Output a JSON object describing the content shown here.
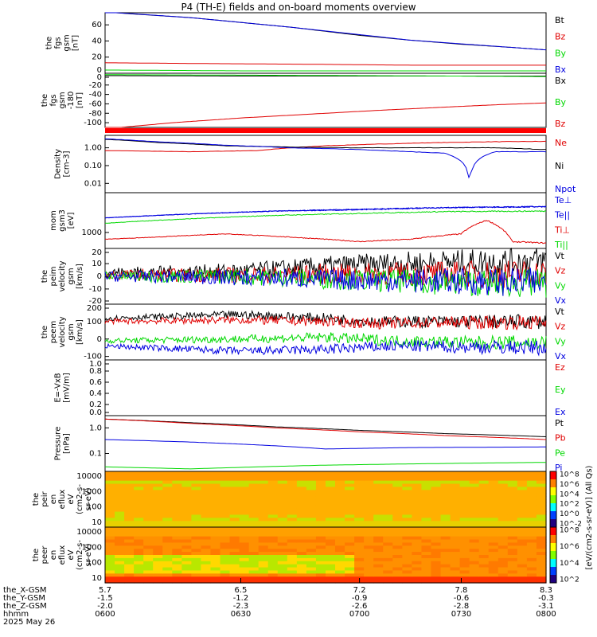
{
  "page": {
    "title": "P4 (TH-E) fields and on-board moments overview"
  },
  "colors": {
    "black": "#000000",
    "red": "#e00000",
    "green": "#00d800",
    "blue": "#0000e0"
  },
  "chart_data": [
    {
      "type": "line",
      "panel": "fgs-magnitude-upper",
      "ylabel": [
        "the",
        "fgs",
        "gsm",
        "[nT]"
      ],
      "yticks": [
        "60",
        "40",
        "20",
        "0"
      ],
      "ylim": [
        0,
        75
      ],
      "series": [
        {
          "name": "Bt",
          "color": "#000000",
          "values": [
            [
              5.7,
              76
            ],
            [
              5.9,
              73
            ],
            [
              6.2,
              69
            ],
            [
              6.5,
              63
            ],
            [
              6.8,
              57
            ],
            [
              7.0,
              52
            ],
            [
              7.2,
              47
            ],
            [
              7.5,
              41
            ],
            [
              7.8,
              36
            ],
            [
              8.1,
              32
            ],
            [
              8.3,
              29
            ]
          ]
        },
        {
          "name": "Bz",
          "color": "#e00000",
          "values": [
            [
              5.7,
              13
            ],
            [
              6.3,
              12
            ],
            [
              7.0,
              11
            ],
            [
              7.5,
              10
            ],
            [
              8.0,
              10
            ],
            [
              8.3,
              10
            ]
          ]
        },
        {
          "name": "By",
          "color": "#00d800",
          "values": [
            [
              5.7,
              4
            ],
            [
              6.5,
              3
            ],
            [
              7.2,
              3
            ],
            [
              7.8,
              3
            ],
            [
              8.3,
              3
            ]
          ]
        },
        {
          "name": "Bx",
          "color": "#0000e0",
          "values": [
            [
              5.7,
              76
            ],
            [
              6.2,
              69
            ],
            [
              6.8,
              57
            ],
            [
              7.5,
              41
            ],
            [
              8.3,
              29
            ]
          ]
        }
      ]
    },
    {
      "type": "line",
      "panel": "fgs-components",
      "ylabel": [
        "the",
        "fgs",
        "gsm",
        "-180",
        "[nT]"
      ],
      "yticks": [
        "0",
        "-20",
        "-40",
        "-60",
        "-80",
        "-100"
      ],
      "ylim": [
        -110,
        5
      ],
      "series": [
        {
          "name": "Bx",
          "color": "#000000",
          "values": [
            [
              5.7,
              0
            ],
            [
              6.5,
              -1
            ],
            [
              7.2,
              -1
            ],
            [
              7.8,
              -1
            ],
            [
              8.3,
              -1
            ]
          ]
        },
        {
          "name": "By",
          "color": "#00d800",
          "values": [
            [
              5.7,
              2
            ],
            [
              6.5,
              1
            ],
            [
              7.2,
              0
            ],
            [
              7.8,
              -1
            ],
            [
              8.3,
              -2
            ]
          ]
        },
        {
          "name": "Bz",
          "color": "#e00000",
          "values": [
            [
              5.7,
              -113
            ],
            [
              6.1,
              -100
            ],
            [
              6.5,
              -90
            ],
            [
              6.9,
              -82
            ],
            [
              7.3,
              -74
            ],
            [
              7.7,
              -67
            ],
            [
              8.0,
              -62
            ],
            [
              8.3,
              -58
            ]
          ]
        }
      ]
    },
    {
      "type": "line",
      "panel": "density",
      "ylabel": [
        "Density",
        "[cm-3]"
      ],
      "yticks": [
        "1.00",
        "0.10",
        "0.01"
      ],
      "log": true,
      "ylim": [
        0.003,
        5
      ],
      "series": [
        {
          "name": "Ne",
          "color": "#e00000",
          "values": [
            [
              5.7,
              0.7
            ],
            [
              6.2,
              0.6
            ],
            [
              6.6,
              0.7
            ],
            [
              7.0,
              1.3
            ],
            [
              7.3,
              1.6
            ],
            [
              7.6,
              1.9
            ],
            [
              8.0,
              2.2
            ],
            [
              8.3,
              2.3
            ]
          ]
        },
        {
          "name": "Ni",
          "color": "#000000",
          "values": [
            [
              5.7,
              3.0
            ],
            [
              6.0,
              2.0
            ],
            [
              6.4,
              1.3
            ],
            [
              6.8,
              1.1
            ],
            [
              7.2,
              1.0
            ],
            [
              7.6,
              1.0
            ],
            [
              8.0,
              1.0
            ],
            [
              8.3,
              0.8
            ]
          ]
        },
        {
          "name": "Npot",
          "color": "#0000e0",
          "values": [
            [
              5.7,
              3.2
            ],
            [
              6.0,
              2.2
            ],
            [
              6.4,
              1.4
            ],
            [
              6.8,
              1.0
            ],
            [
              7.2,
              0.8
            ],
            [
              7.5,
              0.6
            ],
            [
              7.7,
              0.5
            ],
            [
              7.85,
              0.005
            ],
            [
              8.0,
              0.6
            ],
            [
              8.3,
              0.6
            ]
          ]
        }
      ]
    },
    {
      "type": "line",
      "panel": "temperature",
      "ylabel": [
        "mom",
        "gsm3",
        "[eV]"
      ],
      "yticks": [
        "1000"
      ],
      "log": true,
      "ylim": [
        300,
        20000
      ],
      "series": [
        {
          "name": "Te⊥",
          "color": "#0000e0",
          "values": [
            [
              5.7,
              3000
            ],
            [
              6.2,
              4000
            ],
            [
              6.7,
              5000
            ],
            [
              7.2,
              5500
            ],
            [
              7.7,
              6500
            ],
            [
              8.3,
              7000
            ]
          ]
        },
        {
          "name": "Te||",
          "color": "#0000e0",
          "values": [
            [
              5.7,
              3000
            ],
            [
              6.7,
              5000
            ],
            [
              7.7,
              6500
            ],
            [
              8.3,
              7000
            ]
          ]
        },
        {
          "name": "Ti⊥",
          "color": "#e00000",
          "values": [
            [
              5.7,
              600
            ],
            [
              6.0,
              700
            ],
            [
              6.4,
              900
            ],
            [
              6.8,
              700
            ],
            [
              7.2,
              500
            ],
            [
              7.5,
              600
            ],
            [
              7.8,
              900
            ],
            [
              7.95,
              2500
            ],
            [
              8.1,
              500
            ],
            [
              8.3,
              450
            ]
          ]
        },
        {
          "name": "Ti||",
          "color": "#00d800",
          "values": [
            [
              5.7,
              2000
            ],
            [
              6.2,
              2800
            ],
            [
              6.7,
              3600
            ],
            [
              7.2,
              4200
            ],
            [
              7.7,
              4800
            ],
            [
              8.3,
              5000
            ]
          ]
        }
      ]
    },
    {
      "type": "line",
      "panel": "peim-velocity",
      "ylabel": [
        "the",
        "peim",
        "velocity",
        "gsm",
        "[km/s]"
      ],
      "yticks": [
        "20",
        "10",
        "0",
        "-10",
        "-20"
      ],
      "ylim": [
        -22,
        22
      ],
      "series": [
        {
          "name": "Vt",
          "color": "#000000",
          "values": [
            [
              5.7,
              3
            ],
            [
              6.5,
              4
            ],
            [
              7.0,
              8
            ],
            [
              7.4,
              10
            ],
            [
              7.8,
              11
            ],
            [
              8.3,
              12
            ]
          ]
        },
        {
          "name": "Vz",
          "color": "#e00000",
          "values": [
            [
              5.7,
              1
            ],
            [
              6.5,
              1
            ],
            [
              7.2,
              2
            ],
            [
              7.8,
              2
            ],
            [
              8.3,
              2
            ]
          ]
        },
        {
          "name": "Vy",
          "color": "#00d800",
          "values": [
            [
              5.7,
              0
            ],
            [
              6.5,
              0
            ],
            [
              7.2,
              -3
            ],
            [
              7.8,
              -5
            ],
            [
              8.3,
              -6
            ]
          ]
        },
        {
          "name": "Vx",
          "color": "#0000e0",
          "values": [
            [
              5.7,
              0
            ],
            [
              6.5,
              -1
            ],
            [
              7.2,
              -3
            ],
            [
              7.8,
              -4
            ],
            [
              8.3,
              -5
            ]
          ]
        }
      ]
    },
    {
      "type": "line",
      "panel": "peem-velocity",
      "ylabel": [
        "the",
        "peem",
        "velocity",
        "gsm",
        "[km/s]"
      ],
      "yticks": [
        "200",
        "100",
        "0",
        "-100"
      ],
      "ylim": [
        -120,
        200
      ],
      "series": [
        {
          "name": "Vt",
          "color": "#000000",
          "values": [
            [
              5.7,
              120
            ],
            [
              6.5,
              140
            ],
            [
              7.0,
              120
            ],
            [
              7.3,
              100
            ],
            [
              7.6,
              100
            ],
            [
              8.3,
              100
            ]
          ]
        },
        {
          "name": "Vz",
          "color": "#e00000",
          "values": [
            [
              5.7,
              100
            ],
            [
              6.5,
              110
            ],
            [
              7.0,
              100
            ],
            [
              7.3,
              90
            ],
            [
              7.6,
              95
            ],
            [
              8.3,
              95
            ]
          ]
        },
        {
          "name": "Vy",
          "color": "#00d800",
          "values": [
            [
              5.7,
              -10
            ],
            [
              6.5,
              0
            ],
            [
              7.0,
              10
            ],
            [
              7.4,
              -10
            ],
            [
              7.8,
              -20
            ],
            [
              8.3,
              -20
            ]
          ]
        },
        {
          "name": "Vx",
          "color": "#0000e0",
          "values": [
            [
              5.7,
              -40
            ],
            [
              6.5,
              -70
            ],
            [
              7.0,
              -60
            ],
            [
              7.4,
              -40
            ],
            [
              7.8,
              -45
            ],
            [
              8.3,
              -50
            ]
          ]
        }
      ]
    },
    {
      "type": "line",
      "panel": "efield",
      "ylabel": [
        "E=-VxB",
        "[mV/m]"
      ],
      "yticks": [
        "1.0",
        "0.8",
        "0.6",
        "0.4",
        "0.2",
        "0.0"
      ],
      "ylim": [
        0,
        1
      ],
      "series": [
        {
          "name": "Ez",
          "color": "#e00000",
          "values": []
        },
        {
          "name": "Ey",
          "color": "#00d800",
          "values": []
        },
        {
          "name": "Ex",
          "color": "#0000e0",
          "values": []
        }
      ]
    },
    {
      "type": "line",
      "panel": "pressure",
      "ylabel": [
        "Pressure",
        "[nPa]"
      ],
      "yticks": [
        "1.0",
        "0.1"
      ],
      "log": true,
      "ylim": [
        0.02,
        3
      ],
      "series": [
        {
          "name": "Pt",
          "color": "#000000",
          "values": [
            [
              5.7,
              2.2
            ],
            [
              6.2,
              1.6
            ],
            [
              6.7,
              1.1
            ],
            [
              7.2,
              0.8
            ],
            [
              7.7,
              0.6
            ],
            [
              8.3,
              0.45
            ]
          ]
        },
        {
          "name": "Pb",
          "color": "#e00000",
          "values": [
            [
              5.7,
              2.2
            ],
            [
              6.2,
              1.5
            ],
            [
              6.7,
              1.0
            ],
            [
              7.2,
              0.7
            ],
            [
              7.7,
              0.5
            ],
            [
              8.3,
              0.35
            ]
          ]
        },
        {
          "name": "Pe",
          "color": "#00d800",
          "values": [
            [
              5.7,
              0.03
            ],
            [
              6.2,
              0.025
            ],
            [
              6.6,
              0.03
            ],
            [
              7.0,
              0.035
            ],
            [
              7.6,
              0.04
            ],
            [
              8.3,
              0.045
            ]
          ]
        },
        {
          "name": "Pi",
          "color": "#0000e0",
          "values": [
            [
              5.7,
              0.35
            ],
            [
              6.2,
              0.28
            ],
            [
              6.7,
              0.2
            ],
            [
              7.0,
              0.15
            ],
            [
              7.5,
              0.17
            ],
            [
              8.3,
              0.18
            ]
          ]
        }
      ]
    },
    {
      "type": "heatmap",
      "panel": "peir-spectrogram",
      "ylabel": [
        "the",
        "peir",
        "en",
        "eflux",
        "eV",
        "(cm2-s-",
        "sr-eV)"
      ],
      "yticks": [
        "10000",
        "1000",
        "100",
        "10"
      ],
      "colorbar_ticks": [
        "10^8",
        "10^6",
        "10^4",
        "10^2",
        "10^0",
        "10^-2"
      ]
    },
    {
      "type": "heatmap",
      "panel": "peer-spectrogram",
      "ylabel": [
        "the",
        "peer",
        "en",
        "eflux",
        "eV",
        "(cm2-s-",
        "sr-eV)"
      ],
      "yticks": [
        "10000",
        "1000",
        "100",
        "10"
      ],
      "colorbar_ticks": [
        "10^8",
        "10^6",
        "10^4",
        "10^2"
      ],
      "colorbar_label": "[eV/(cm2-s-sr-eV)] (All Qs)"
    }
  ],
  "time_axis": {
    "xlim": [
      5.7,
      8.3
    ],
    "rows": [
      {
        "label": "the_X-GSM",
        "values": [
          "5.7",
          "6.5",
          "7.2",
          "7.8",
          "8.3"
        ]
      },
      {
        "label": "the_Y-GSM",
        "values": [
          "-1.5",
          "-1.2",
          "-0.9",
          "-0.6",
          "-0.3"
        ]
      },
      {
        "label": "the_Z-GSM",
        "values": [
          "-2.0",
          "-2.3",
          "-2.6",
          "-2.8",
          "-3.1"
        ]
      },
      {
        "label": "hhmm",
        "values": [
          "0600",
          "0630",
          "0700",
          "0730",
          "0800"
        ]
      }
    ],
    "date": "2025 May 26"
  }
}
